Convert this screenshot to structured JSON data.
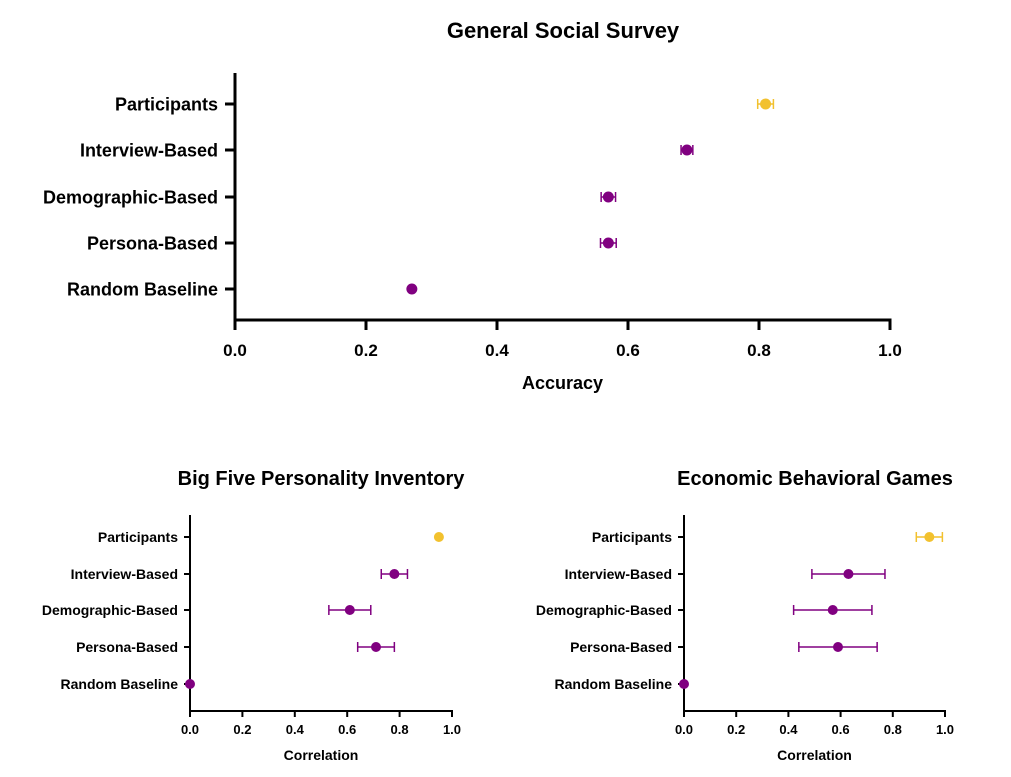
{
  "chart_data": [
    {
      "type": "scatter",
      "title": "General Social Survey",
      "xlabel": "Accuracy",
      "ylabel": "",
      "xlim": [
        0,
        1.0
      ],
      "x_ticks": [
        "0.0",
        "0.2",
        "0.4",
        "0.6",
        "0.8",
        "1.0"
      ],
      "categories": [
        "Participants",
        "Interview-Based",
        "Demographic-Based",
        "Persona-Based",
        "Random Baseline"
      ],
      "values": [
        0.81,
        0.69,
        0.57,
        0.57,
        0.27
      ],
      "error": [
        0.012,
        0.009,
        0.011,
        0.012,
        0.0
      ],
      "colors": [
        "#f2c12e",
        "#800080",
        "#800080",
        "#800080",
        "#800080"
      ],
      "grid": false
    },
    {
      "type": "scatter",
      "title": "Big Five Personality Inventory",
      "xlabel": "Correlation",
      "ylabel": "",
      "xlim": [
        0,
        1.0
      ],
      "x_ticks": [
        "0.0",
        "0.2",
        "0.4",
        "0.6",
        "0.8",
        "1.0"
      ],
      "categories": [
        "Participants",
        "Interview-Based",
        "Demographic-Based",
        "Persona-Based",
        "Random Baseline"
      ],
      "values": [
        0.95,
        0.78,
        0.61,
        0.71,
        0.0
      ],
      "error": [
        0.0,
        0.05,
        0.08,
        0.07,
        0.0
      ],
      "colors": [
        "#f2c12e",
        "#800080",
        "#800080",
        "#800080",
        "#800080"
      ],
      "grid": false
    },
    {
      "type": "scatter",
      "title": "Economic Behavioral Games",
      "xlabel": "Correlation",
      "ylabel": "",
      "xlim": [
        0,
        1.0
      ],
      "x_ticks": [
        "0.0",
        "0.2",
        "0.4",
        "0.6",
        "0.8",
        "1.0"
      ],
      "categories": [
        "Participants",
        "Interview-Based",
        "Demographic-Based",
        "Persona-Based",
        "Random Baseline"
      ],
      "values": [
        0.94,
        0.63,
        0.57,
        0.59,
        0.0
      ],
      "error": [
        0.05,
        0.14,
        0.15,
        0.15,
        0.0
      ],
      "colors": [
        "#f2c12e",
        "#800080",
        "#800080",
        "#800080",
        "#800080"
      ],
      "grid": false
    }
  ]
}
